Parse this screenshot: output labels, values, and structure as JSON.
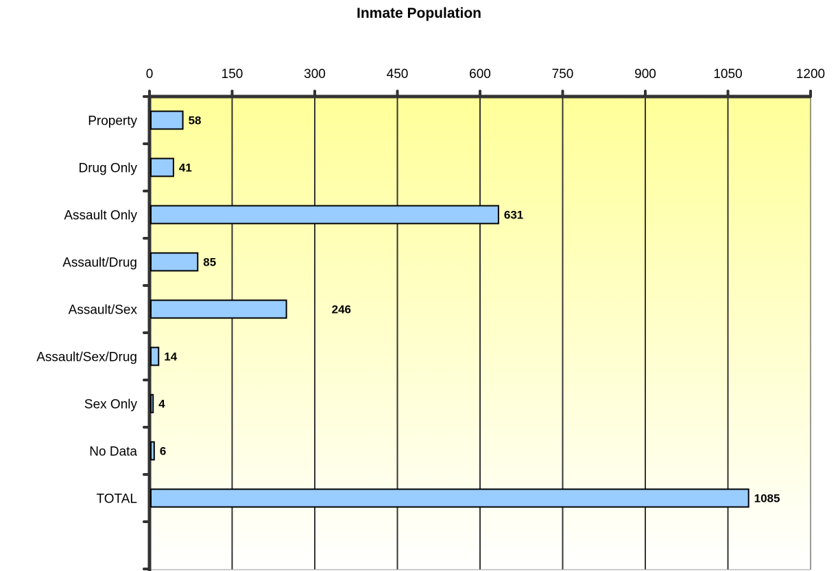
{
  "chart_data": {
    "type": "bar",
    "orientation": "horizontal",
    "title": "Inmate Population",
    "categories": [
      "Property",
      "Drug Only",
      "Assault Only",
      "Assault/Drug",
      "Assault/Sex",
      "Assault/Sex/Drug",
      "Sex Only",
      "No Data",
      "TOTAL"
    ],
    "values": [
      58,
      41,
      631,
      85,
      246,
      14,
      4,
      6,
      1085
    ],
    "data_labels": [
      "58",
      "41",
      "631",
      "85",
      "246",
      "14",
      "4",
      "6",
      "1085"
    ],
    "xlim": [
      0,
      1200
    ],
    "x_ticks": [
      0,
      150,
      300,
      450,
      600,
      750,
      900,
      1050,
      1200
    ],
    "x_tick_labels": [
      "0",
      "150",
      "300",
      "450",
      "600",
      "750",
      "900",
      "1050",
      "1200"
    ],
    "x_axis_position": "top",
    "grid": true,
    "legend": "none",
    "colors": {
      "bar_fill": "#99ccff",
      "bar_stroke": "#000000",
      "plot_bg_top": "#ffff99",
      "plot_bg_bottom": "#ffffff",
      "grid": "#333333",
      "axis": "#333333"
    }
  }
}
